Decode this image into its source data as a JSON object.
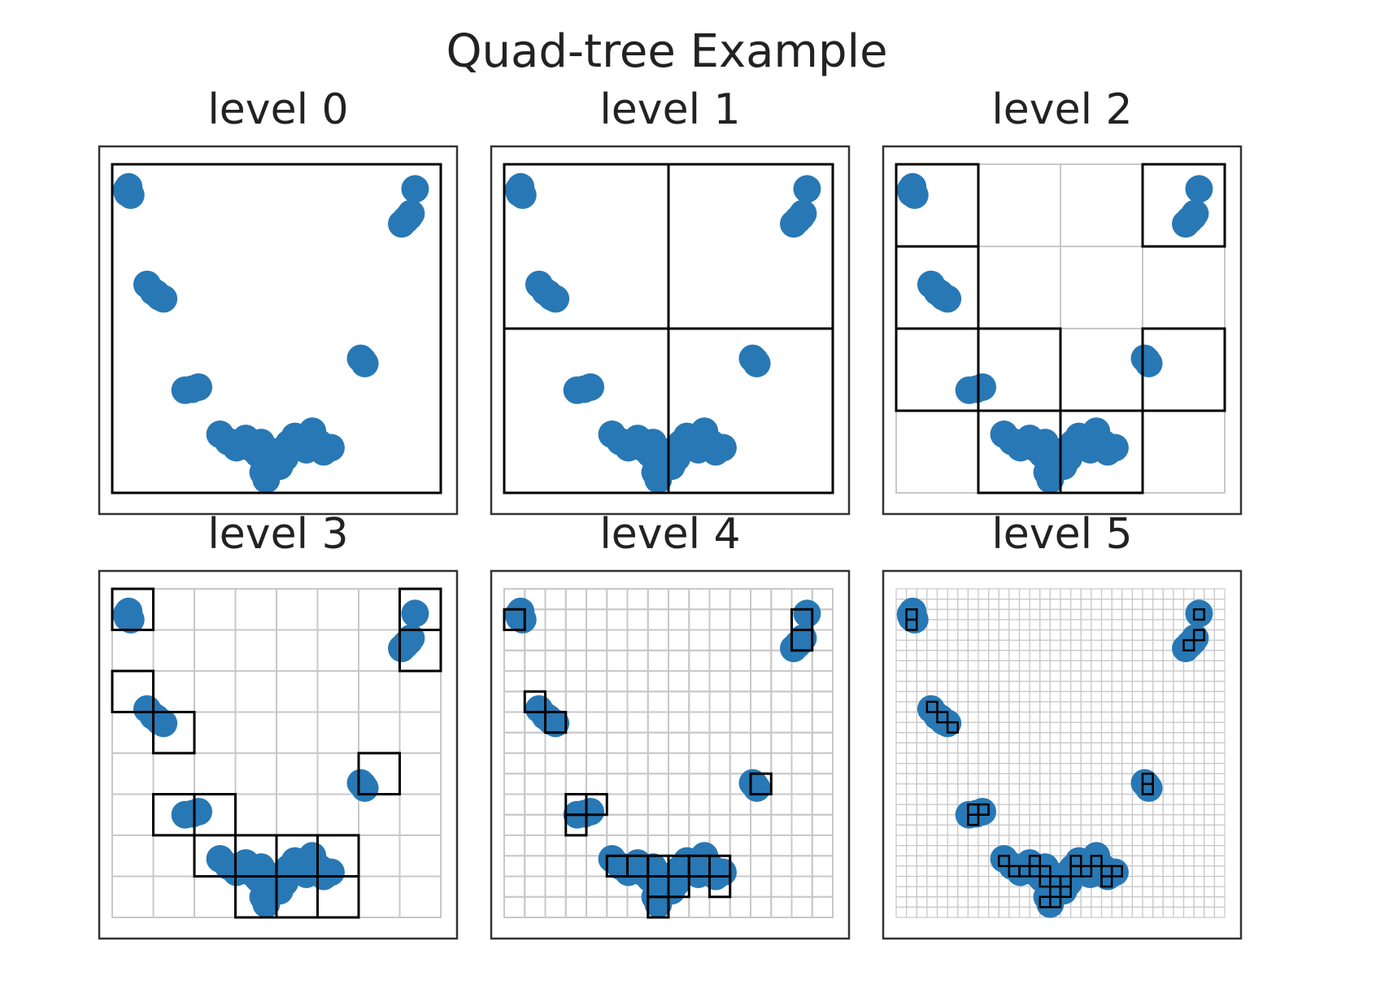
{
  "figure": {
    "title": "Quad-tree Example"
  },
  "colors": {
    "point": "#2878b5",
    "occupied_cell": "#000000",
    "grid": "#c8c8c8",
    "axes_frame": "#333333"
  },
  "chart_data": {
    "type": "scatter",
    "grid": true,
    "xlim": [
      0,
      32
    ],
    "ylim": [
      0,
      32
    ],
    "points": [
      [
        1.5,
        29.2
      ],
      [
        1.6,
        29.8
      ],
      [
        1.8,
        29.0
      ],
      [
        1.4,
        29.5
      ],
      [
        29.5,
        29.6
      ],
      [
        29.1,
        27.2
      ],
      [
        28.6,
        26.6
      ],
      [
        28.2,
        26.2
      ],
      [
        28.9,
        26.9
      ],
      [
        3.4,
        20.3
      ],
      [
        4.0,
        19.6
      ],
      [
        4.6,
        19.1
      ],
      [
        5.0,
        18.9
      ],
      [
        4.3,
        19.4
      ],
      [
        24.2,
        13.1
      ],
      [
        24.6,
        12.6
      ],
      [
        24.4,
        12.9
      ],
      [
        7.1,
        10.0
      ],
      [
        8.4,
        10.3
      ],
      [
        7.8,
        10.1
      ],
      [
        10.5,
        5.7
      ],
      [
        11.3,
        5.0
      ],
      [
        12.1,
        4.4
      ],
      [
        13.0,
        5.3
      ],
      [
        13.5,
        4.4
      ],
      [
        14.2,
        3.8
      ],
      [
        14.5,
        4.9
      ],
      [
        15.1,
        3.2
      ],
      [
        14.7,
        2.0
      ],
      [
        15.4,
        2.7
      ],
      [
        16.1,
        4.0
      ],
      [
        16.8,
        3.4
      ],
      [
        17.2,
        4.8
      ],
      [
        17.8,
        5.5
      ],
      [
        18.2,
        4.6
      ],
      [
        18.9,
        4.2
      ],
      [
        19.5,
        6.0
      ],
      [
        20.2,
        4.8
      ],
      [
        21.3,
        4.4
      ],
      [
        20.6,
        4.0
      ],
      [
        15.0,
        1.3
      ],
      [
        16.3,
        2.6
      ]
    ]
  },
  "panels": [
    {
      "title": "level 0",
      "level": 0
    },
    {
      "title": "level 1",
      "level": 1
    },
    {
      "title": "level 2",
      "level": 2
    },
    {
      "title": "level 3",
      "level": 3
    },
    {
      "title": "level 4",
      "level": 4
    },
    {
      "title": "level 5",
      "level": 5
    }
  ]
}
